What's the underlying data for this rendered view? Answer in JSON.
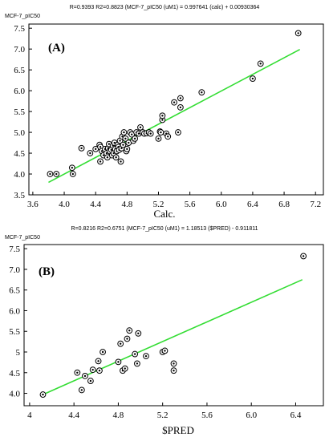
{
  "chart_data": [
    {
      "type": "scatter",
      "stats_line": "R=0.9393 R2=0.8823   (MCF-7_pIC50 (uM1) = 0.997641 (calc) + 0.00930364",
      "ylabel": "MCF-7_pIC50",
      "xlabel": "Calc.",
      "panel_label": "(A)",
      "xlim": [
        3.55,
        7.3
      ],
      "ylim": [
        3.5,
        7.6
      ],
      "x_ticks": [
        "3.6",
        "4.0",
        "4.4",
        "4.8",
        "5.2",
        "5.6",
        "6.0",
        "6.4",
        "6.8",
        "7.2"
      ],
      "y_ticks": [
        "3.5",
        "4.0",
        "4.5",
        "5.0",
        "5.5",
        "6.0",
        "6.5",
        "7.0",
        "7.5"
      ],
      "fit_line": {
        "x": [
          3.8,
          7.0
        ],
        "y": [
          3.8,
          6.99
        ]
      },
      "points": [
        [
          3.82,
          4.0
        ],
        [
          3.9,
          4.0
        ],
        [
          4.1,
          4.15
        ],
        [
          4.11,
          4.0
        ],
        [
          4.22,
          4.62
        ],
        [
          4.33,
          4.5
        ],
        [
          4.4,
          4.6
        ],
        [
          4.45,
          4.7
        ],
        [
          4.46,
          4.65
        ],
        [
          4.46,
          4.3
        ],
        [
          4.48,
          4.55
        ],
        [
          4.5,
          4.45
        ],
        [
          4.52,
          4.6
        ],
        [
          4.54,
          4.5
        ],
        [
          4.55,
          4.4
        ],
        [
          4.56,
          4.62
        ],
        [
          4.57,
          4.72
        ],
        [
          4.58,
          4.55
        ],
        [
          4.6,
          4.58
        ],
        [
          4.61,
          4.45
        ],
        [
          4.62,
          4.68
        ],
        [
          4.63,
          4.5
        ],
        [
          4.64,
          4.75
        ],
        [
          4.65,
          4.6
        ],
        [
          4.66,
          4.4
        ],
        [
          4.67,
          4.55
        ],
        [
          4.68,
          4.7
        ],
        [
          4.69,
          4.65
        ],
        [
          4.7,
          4.58
        ],
        [
          4.71,
          4.8
        ],
        [
          4.72,
          4.3
        ],
        [
          4.73,
          4.62
        ],
        [
          4.74,
          4.9
        ],
        [
          4.75,
          4.7
        ],
        [
          4.76,
          5.0
        ],
        [
          4.78,
          4.85
        ],
        [
          4.79,
          4.55
        ],
        [
          4.8,
          4.6
        ],
        [
          4.82,
          4.75
        ],
        [
          4.84,
          5.0
        ],
        [
          4.86,
          4.95
        ],
        [
          4.88,
          4.8
        ],
        [
          4.9,
          4.85
        ],
        [
          4.92,
          5.0
        ],
        [
          4.95,
          4.97
        ],
        [
          4.97,
          5.12
        ],
        [
          5.0,
          5.0
        ],
        [
          5.02,
          4.97
        ],
        [
          5.05,
          4.98
        ],
        [
          5.08,
          5.0
        ],
        [
          5.1,
          4.97
        ],
        [
          5.2,
          4.85
        ],
        [
          5.22,
          5.02
        ],
        [
          5.23,
          5.0
        ],
        [
          5.25,
          5.3
        ],
        [
          5.25,
          5.4
        ],
        [
          5.3,
          4.97
        ],
        [
          5.32,
          4.9
        ],
        [
          5.4,
          5.72
        ],
        [
          5.45,
          5.0
        ],
        [
          5.48,
          5.82
        ],
        [
          5.48,
          5.6
        ],
        [
          5.75,
          5.96
        ],
        [
          6.4,
          6.29
        ],
        [
          6.5,
          6.65
        ],
        [
          6.98,
          7.38
        ]
      ]
    },
    {
      "type": "scatter",
      "stats_line": "R=0.8216 R2=0.6751   (MCF-7_pIC50 (uM1) = 1.18513 ($PRED) - 0.911811",
      "ylabel": "MCF-7_pIC50",
      "xlabel": "$PRED",
      "panel_label": "(B)",
      "xlim": [
        3.95,
        6.65
      ],
      "ylim": [
        3.7,
        7.6
      ],
      "x_ticks": [
        "4",
        "4.4",
        "4.8",
        "5.2",
        "5.6",
        "6.0",
        "6.4"
      ],
      "y_ticks": [
        "4.0",
        "4.5",
        "5",
        "5.5",
        "6.0",
        "6.5",
        "7.0",
        "7.5"
      ],
      "fit_line": {
        "x": [
          4.12,
          6.46
        ],
        "y": [
          3.97,
          6.75
        ]
      },
      "points": [
        [
          4.12,
          3.97
        ],
        [
          4.43,
          4.5
        ],
        [
          4.47,
          4.08
        ],
        [
          4.5,
          4.42
        ],
        [
          4.55,
          4.3
        ],
        [
          4.57,
          4.57
        ],
        [
          4.62,
          4.78
        ],
        [
          4.63,
          4.55
        ],
        [
          4.66,
          5.0
        ],
        [
          4.8,
          4.76
        ],
        [
          4.82,
          5.2
        ],
        [
          4.84,
          4.55
        ],
        [
          4.86,
          4.6
        ],
        [
          4.88,
          5.32
        ],
        [
          4.9,
          5.52
        ],
        [
          4.95,
          4.95
        ],
        [
          4.97,
          4.72
        ],
        [
          4.98,
          5.45
        ],
        [
          5.05,
          4.9
        ],
        [
          5.2,
          5.0
        ],
        [
          5.22,
          5.03
        ],
        [
          5.3,
          4.72
        ],
        [
          5.3,
          4.55
        ],
        [
          6.47,
          7.32
        ]
      ]
    }
  ],
  "colors": {
    "fit_line": "#33dd33",
    "marker": "#000000",
    "frame": "#000000"
  }
}
